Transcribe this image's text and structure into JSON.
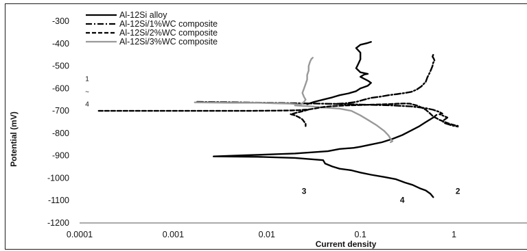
{
  "chart_data": {
    "type": "line",
    "xlabel": "Current density",
    "ylabel": "Potential (mV)",
    "xscale": "log",
    "xlim": [
      0.0001,
      10
    ],
    "ylim": [
      -1200,
      -300
    ],
    "x_ticks": [
      "0.0001",
      "0.001",
      "0.01",
      "0.1",
      "1"
    ],
    "y_ticks": [
      "-300",
      "-400",
      "-500",
      "-600",
      "-700",
      "-800",
      "-900",
      "-1000",
      "-1100",
      "-1200"
    ],
    "grid": false,
    "legend_position": "top-left",
    "series": [
      {
        "name": "Al-12Si alloy",
        "color": "#000000",
        "dash": "solid",
        "points": [
          [
            0.6,
            -1085
          ],
          [
            0.56,
            -1070
          ],
          [
            0.5,
            -1055
          ],
          [
            0.43,
            -1045
          ],
          [
            0.36,
            -1030
          ],
          [
            0.3,
            -1020
          ],
          [
            0.24,
            -1005
          ],
          [
            0.18,
            -995
          ],
          [
            0.13,
            -985
          ],
          [
            0.1,
            -975
          ],
          [
            0.08,
            -965
          ],
          [
            0.06,
            -958
          ],
          [
            0.05,
            -948
          ],
          [
            0.042,
            -935
          ],
          [
            0.04,
            -920
          ],
          [
            0.02,
            -910
          ],
          [
            0.008,
            -905
          ],
          [
            0.0027,
            -903
          ],
          [
            0.006,
            -898
          ],
          [
            0.02,
            -890
          ],
          [
            0.045,
            -880
          ],
          [
            0.06,
            -870
          ],
          [
            0.085,
            -865
          ],
          [
            0.1,
            -860
          ],
          [
            0.13,
            -850
          ],
          [
            0.17,
            -840
          ],
          [
            0.22,
            -825
          ],
          [
            0.28,
            -808
          ],
          [
            0.34,
            -790
          ],
          [
            0.42,
            -770
          ],
          [
            0.5,
            -750
          ],
          [
            0.6,
            -730
          ],
          [
            0.65,
            -718
          ]
        ]
      },
      {
        "name": "Al-12Si/1%WC composite",
        "color": "#000000",
        "dash": "dashdot",
        "points": [
          [
            0.0018,
            -660
          ],
          [
            0.005,
            -662
          ],
          [
            0.01,
            -664
          ],
          [
            0.02,
            -666
          ],
          [
            0.03,
            -667
          ],
          [
            0.04,
            -668
          ],
          [
            0.055,
            -669
          ],
          [
            0.07,
            -666
          ],
          [
            0.09,
            -660
          ],
          [
            0.11,
            -650
          ],
          [
            0.13,
            -642
          ],
          [
            0.16,
            -637
          ],
          [
            0.2,
            -630
          ],
          [
            0.25,
            -625
          ],
          [
            0.3,
            -620
          ],
          [
            0.35,
            -615
          ],
          [
            0.4,
            -605
          ],
          [
            0.45,
            -590
          ],
          [
            0.5,
            -570
          ],
          [
            0.52,
            -550
          ],
          [
            0.55,
            -530
          ],
          [
            0.57,
            -515
          ],
          [
            0.59,
            -500
          ],
          [
            0.6,
            -485
          ],
          [
            0.62,
            -477
          ],
          [
            0.61,
            -468
          ],
          [
            0.59,
            -458
          ],
          [
            0.6,
            -450
          ]
        ]
      },
      {
        "name": "Al-12Si/2%WC composite",
        "color": "#000000",
        "dash": "dashed",
        "points": [
          [
            0.00016,
            -700
          ],
          [
            0.0005,
            -700
          ],
          [
            0.002,
            -700
          ],
          [
            0.006,
            -700
          ],
          [
            0.012,
            -699
          ],
          [
            0.018,
            -698
          ],
          [
            0.022,
            -697
          ],
          [
            0.025,
            -695
          ],
          [
            0.028,
            -694
          ],
          [
            0.025,
            -700
          ],
          [
            0.02,
            -710
          ],
          [
            0.018,
            -715
          ],
          [
            0.02,
            -720
          ],
          [
            0.022,
            -728
          ],
          [
            0.024,
            -738
          ],
          [
            0.025,
            -748
          ],
          [
            0.026,
            -758
          ],
          [
            0.026,
            -768
          ]
        ]
      },
      {
        "name": "Al-12Si/3%WC composite",
        "color": "#999999",
        "dash": "solid",
        "points": [
          [
            0.0017,
            -662
          ],
          [
            0.004,
            -664
          ],
          [
            0.008,
            -664
          ],
          [
            0.012,
            -666
          ],
          [
            0.018,
            -668
          ],
          [
            0.023,
            -672
          ],
          [
            0.02,
            -676
          ],
          [
            0.03,
            -680
          ],
          [
            0.04,
            -685
          ],
          [
            0.06,
            -690
          ],
          [
            0.08,
            -700
          ],
          [
            0.1,
            -720
          ],
          [
            0.12,
            -740
          ],
          [
            0.15,
            -765
          ],
          [
            0.18,
            -790
          ],
          [
            0.2,
            -810
          ],
          [
            0.21,
            -825
          ],
          [
            0.22,
            -835
          ]
        ]
      }
    ],
    "extra_segments": [
      {
        "series": "Al-12Si alloy",
        "color": "#000000",
        "dash": "solid",
        "points": [
          [
            0.027,
            -670
          ],
          [
            0.032,
            -660
          ],
          [
            0.04,
            -650
          ],
          [
            0.05,
            -640
          ],
          [
            0.06,
            -630
          ],
          [
            0.075,
            -622
          ],
          [
            0.09,
            -612
          ],
          [
            0.1,
            -600
          ],
          [
            0.12,
            -588
          ],
          [
            0.13,
            -575
          ],
          [
            0.12,
            -565
          ],
          [
            0.1,
            -548
          ],
          [
            0.11,
            -538
          ],
          [
            0.12,
            -535
          ],
          [
            0.1,
            -528
          ],
          [
            0.09,
            -510
          ],
          [
            0.095,
            -490
          ],
          [
            0.1,
            -470
          ],
          [
            0.1,
            -440
          ],
          [
            0.09,
            -420
          ],
          [
            0.1,
            -405
          ],
          [
            0.12,
            -397
          ],
          [
            0.13,
            -392
          ]
        ]
      },
      {
        "series": "Al-12Si/1%WC composite",
        "color": "#000000",
        "dash": "dashdot",
        "points": [
          [
            0.055,
            -669
          ],
          [
            0.1,
            -672
          ],
          [
            0.2,
            -675
          ],
          [
            0.35,
            -680
          ],
          [
            0.5,
            -688
          ],
          [
            0.6,
            -695
          ],
          [
            0.65,
            -700
          ],
          [
            0.7,
            -705
          ],
          [
            0.75,
            -712
          ],
          [
            0.7,
            -715
          ],
          [
            0.75,
            -720
          ],
          [
            0.8,
            -725
          ],
          [
            0.85,
            -730
          ],
          [
            0.8,
            -738
          ],
          [
            0.75,
            -745
          ],
          [
            0.8,
            -755
          ],
          [
            0.95,
            -765
          ],
          [
            1.1,
            -770
          ]
        ]
      },
      {
        "series": "Al-12Si/2%WC composite",
        "color": "#000000",
        "dash": "dashed",
        "points": [
          [
            0.028,
            -694
          ],
          [
            0.034,
            -688
          ],
          [
            0.04,
            -683
          ],
          [
            0.05,
            -679
          ],
          [
            0.07,
            -676
          ],
          [
            0.1,
            -674
          ],
          [
            0.14,
            -672
          ],
          [
            0.2,
            -670
          ],
          [
            0.25,
            -668
          ],
          [
            0.3,
            -667
          ],
          [
            0.34,
            -668
          ],
          [
            0.36,
            -671
          ],
          [
            0.4,
            -676
          ],
          [
            0.45,
            -685
          ],
          [
            0.5,
            -695
          ],
          [
            0.55,
            -710
          ],
          [
            0.6,
            -725
          ],
          [
            0.7,
            -740
          ],
          [
            0.8,
            -750
          ],
          [
            0.9,
            -758
          ],
          [
            1.0,
            -763
          ],
          [
            1.1,
            -767
          ]
        ]
      },
      {
        "series": "Al-12Si/3%WC composite",
        "color": "#999999",
        "dash": "solid",
        "points": [
          [
            0.023,
            -672
          ],
          [
            0.025,
            -660
          ],
          [
            0.026,
            -650
          ],
          [
            0.025,
            -638
          ],
          [
            0.024,
            -620
          ],
          [
            0.025,
            -600
          ],
          [
            0.026,
            -580
          ],
          [
            0.027,
            -560
          ],
          [
            0.027,
            -540
          ],
          [
            0.028,
            -520
          ],
          [
            0.028,
            -500
          ],
          [
            0.029,
            -480
          ],
          [
            0.03,
            -468
          ],
          [
            0.031,
            -463
          ]
        ]
      },
      {
        "series": "Al-12Si/3%WC composite",
        "color": "#999999",
        "dash": "solid",
        "points": [
          [
            0.22,
            -835
          ],
          [
            0.21,
            -840
          ]
        ]
      }
    ],
    "curve_labels": [
      {
        "text": "3",
        "x": 0.025,
        "y": -1070
      },
      {
        "text": "2",
        "x": 1.1,
        "y": -1070
      },
      {
        "text": "4",
        "x": 0.28,
        "y": -1110
      }
    ],
    "side_labels": [
      {
        "text": "1",
        "y": -567
      },
      {
        "text": "~",
        "y": -625
      },
      {
        "text": "4",
        "y": -680
      }
    ]
  }
}
